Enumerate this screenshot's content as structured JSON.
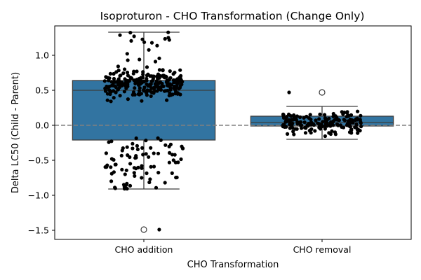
{
  "chart_data": {
    "type": "box",
    "title": "Isoproturon - CHO Transformation (Change Only)",
    "xlabel": "CHO Transformation",
    "ylabel": "Delta LC50 (Child - Parent)",
    "categories": [
      "CHO addition",
      "CHO removal"
    ],
    "ylim": [
      -1.63,
      1.42
    ],
    "yticks": [
      -1.5,
      -1.0,
      -0.5,
      0.0,
      0.5,
      1.0
    ],
    "ytick_labels": [
      "−1.5",
      "−1.0",
      "−0.5",
      "0.0",
      "0.5",
      "1.0"
    ],
    "reference_line": 0.0,
    "grid": false,
    "box_color": "#3274a1",
    "point_color": "#000000",
    "boxes": [
      {
        "category": "CHO addition",
        "whisker_low": -0.91,
        "q1": -0.21,
        "median": 0.5,
        "q3": 0.64,
        "whisker_high": 1.33,
        "outliers": [
          -1.49
        ],
        "point_ranges": [
          {
            "min": -0.91,
            "max": -0.18,
            "count": 85
          },
          {
            "min": 0.3,
            "max": 0.9,
            "count": 240
          },
          {
            "min": 0.9,
            "max": 1.33,
            "count": 18
          }
        ],
        "extra_points": [
          -1.49
        ]
      },
      {
        "category": "CHO removal",
        "whisker_low": -0.2,
        "q1": -0.01,
        "median": 0.04,
        "q3": 0.13,
        "whisker_high": 0.27,
        "outliers": [
          0.47
        ],
        "point_ranges": [
          {
            "min": -0.2,
            "max": 0.27,
            "count": 170
          }
        ],
        "extra_points": [
          0.47
        ]
      }
    ]
  }
}
